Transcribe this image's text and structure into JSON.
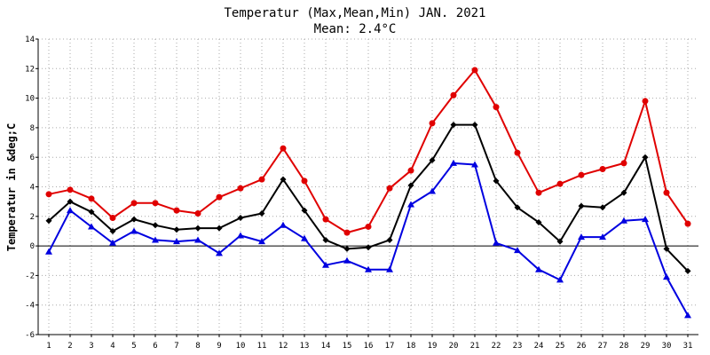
{
  "chart_data": {
    "type": "line",
    "title": "Temperatur (Max,Mean,Min) JAN. 2021",
    "subtitle": "Mean: 2.4°C",
    "xlabel": "",
    "ylabel": "Temperatur in &deg;C",
    "ylim": [
      -6,
      14
    ],
    "yticks": [
      "-6",
      "-4",
      "-2",
      "0",
      "2",
      "4",
      "6",
      "8",
      "10",
      "12",
      "14"
    ],
    "categories": [
      "1",
      "2",
      "3",
      "4",
      "5",
      "6",
      "7",
      "8",
      "9",
      "10",
      "11",
      "12",
      "13",
      "14",
      "15",
      "16",
      "17",
      "18",
      "19",
      "20",
      "21",
      "22",
      "23",
      "24",
      "25",
      "26",
      "27",
      "28",
      "29",
      "30",
      "31"
    ],
    "grid": true,
    "series": [
      {
        "name": "Max",
        "color": "#e00000",
        "marker": "circle",
        "values": [
          3.5,
          3.8,
          3.2,
          1.9,
          2.9,
          2.9,
          2.4,
          2.2,
          3.3,
          3.9,
          4.5,
          6.6,
          4.4,
          1.8,
          0.9,
          1.3,
          3.9,
          5.1,
          8.3,
          10.2,
          11.9,
          9.4,
          6.3,
          3.6,
          4.2,
          4.8,
          5.2,
          5.6,
          9.8,
          3.6,
          1.5
        ]
      },
      {
        "name": "Mean",
        "color": "#000000",
        "marker": "diamond",
        "values": [
          1.7,
          3.0,
          2.3,
          1.0,
          1.8,
          1.4,
          1.1,
          1.2,
          1.2,
          1.9,
          2.2,
          4.5,
          2.4,
          0.4,
          -0.2,
          -0.1,
          0.4,
          4.1,
          5.8,
          8.2,
          8.2,
          4.4,
          2.6,
          1.6,
          0.3,
          2.7,
          2.6,
          3.6,
          6.0,
          -0.2,
          -1.7
        ]
      },
      {
        "name": "Min",
        "color": "#0000e0",
        "marker": "triangle",
        "values": [
          -0.4,
          2.4,
          1.3,
          0.2,
          1.0,
          0.4,
          0.3,
          0.4,
          -0.5,
          0.7,
          0.3,
          1.4,
          0.5,
          -1.3,
          -1.0,
          -1.6,
          -1.6,
          2.8,
          3.7,
          5.6,
          5.5,
          0.2,
          -0.3,
          -1.6,
          -2.3,
          0.6,
          0.6,
          1.7,
          1.8,
          -2.1,
          -4.7
        ]
      }
    ]
  }
}
